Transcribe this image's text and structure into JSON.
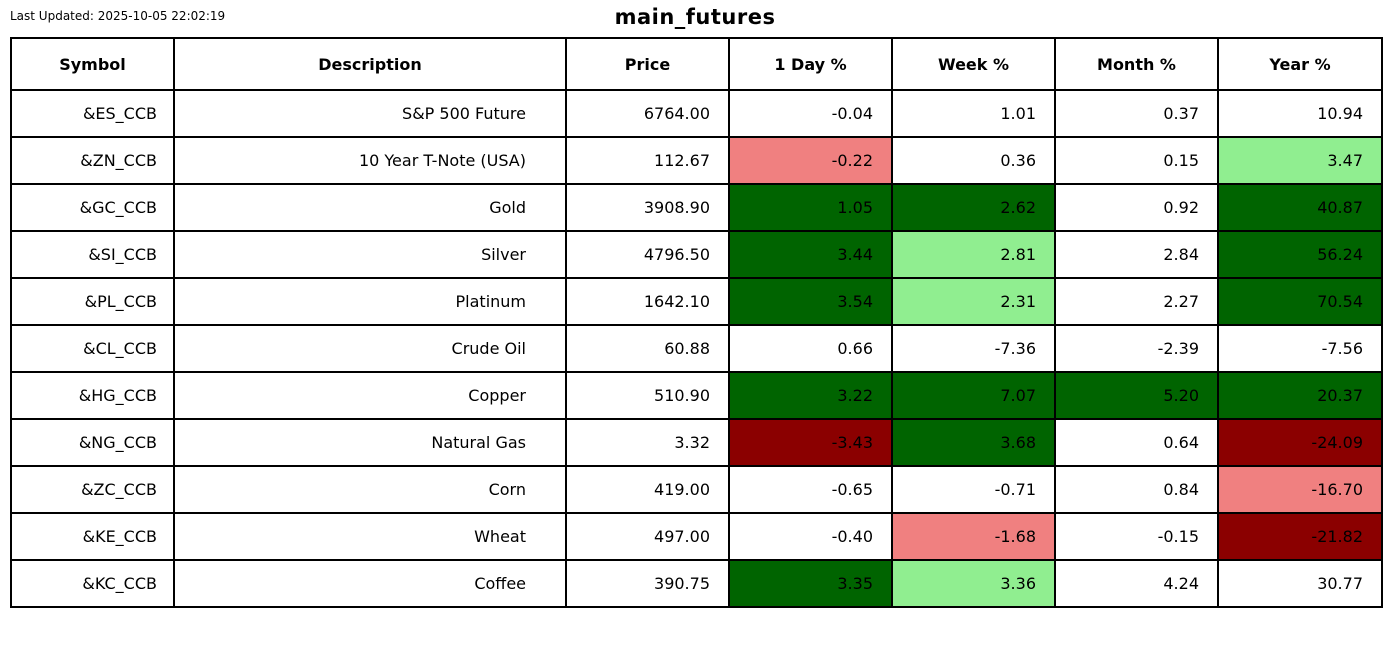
{
  "header": {
    "last_updated": "Last Updated: 2025-10-05 22:02:19",
    "title": "main_futures"
  },
  "colors": {
    "none": "#FFFFFF",
    "dark-green": "#006400",
    "light-green": "#90EE90",
    "light-red": "#F08080",
    "dark-red": "#8B0000"
  },
  "chart_data": {
    "type": "table",
    "title": "main_futures",
    "columns": [
      "Symbol",
      "Description",
      "Price",
      "1 Day %",
      "Week %",
      "Month %",
      "Year %"
    ],
    "rows": [
      {
        "symbol": "&ES_CCB",
        "description": "S&P 500 Future",
        "price": "6764.00",
        "changes": [
          {
            "value": "-0.04",
            "bg": "none"
          },
          {
            "value": "1.01",
            "bg": "none"
          },
          {
            "value": "0.37",
            "bg": "none"
          },
          {
            "value": "10.94",
            "bg": "none"
          }
        ]
      },
      {
        "symbol": "&ZN_CCB",
        "description": "10 Year T-Note (USA)",
        "price": "112.67",
        "changes": [
          {
            "value": "-0.22",
            "bg": "light-red"
          },
          {
            "value": "0.36",
            "bg": "none"
          },
          {
            "value": "0.15",
            "bg": "none"
          },
          {
            "value": "3.47",
            "bg": "light-green"
          }
        ]
      },
      {
        "symbol": "&GC_CCB",
        "description": "Gold",
        "price": "3908.90",
        "changes": [
          {
            "value": "1.05",
            "bg": "dark-green"
          },
          {
            "value": "2.62",
            "bg": "dark-green"
          },
          {
            "value": "0.92",
            "bg": "none"
          },
          {
            "value": "40.87",
            "bg": "dark-green"
          }
        ]
      },
      {
        "symbol": "&SI_CCB",
        "description": "Silver",
        "price": "4796.50",
        "changes": [
          {
            "value": "3.44",
            "bg": "dark-green"
          },
          {
            "value": "2.81",
            "bg": "light-green"
          },
          {
            "value": "2.84",
            "bg": "none"
          },
          {
            "value": "56.24",
            "bg": "dark-green"
          }
        ]
      },
      {
        "symbol": "&PL_CCB",
        "description": "Platinum",
        "price": "1642.10",
        "changes": [
          {
            "value": "3.54",
            "bg": "dark-green"
          },
          {
            "value": "2.31",
            "bg": "light-green"
          },
          {
            "value": "2.27",
            "bg": "none"
          },
          {
            "value": "70.54",
            "bg": "dark-green"
          }
        ]
      },
      {
        "symbol": "&CL_CCB",
        "description": "Crude Oil",
        "price": "60.88",
        "changes": [
          {
            "value": "0.66",
            "bg": "none"
          },
          {
            "value": "-7.36",
            "bg": "none"
          },
          {
            "value": "-2.39",
            "bg": "none"
          },
          {
            "value": "-7.56",
            "bg": "none"
          }
        ]
      },
      {
        "symbol": "&HG_CCB",
        "description": "Copper",
        "price": "510.90",
        "changes": [
          {
            "value": "3.22",
            "bg": "dark-green"
          },
          {
            "value": "7.07",
            "bg": "dark-green"
          },
          {
            "value": "5.20",
            "bg": "dark-green"
          },
          {
            "value": "20.37",
            "bg": "dark-green"
          }
        ]
      },
      {
        "symbol": "&NG_CCB",
        "description": "Natural Gas",
        "price": "3.32",
        "changes": [
          {
            "value": "-3.43",
            "bg": "dark-red"
          },
          {
            "value": "3.68",
            "bg": "dark-green"
          },
          {
            "value": "0.64",
            "bg": "none"
          },
          {
            "value": "-24.09",
            "bg": "dark-red"
          }
        ]
      },
      {
        "symbol": "&ZC_CCB",
        "description": "Corn",
        "price": "419.00",
        "changes": [
          {
            "value": "-0.65",
            "bg": "none"
          },
          {
            "value": "-0.71",
            "bg": "none"
          },
          {
            "value": "0.84",
            "bg": "none"
          },
          {
            "value": "-16.70",
            "bg": "light-red"
          }
        ]
      },
      {
        "symbol": "&KE_CCB",
        "description": "Wheat",
        "price": "497.00",
        "changes": [
          {
            "value": "-0.40",
            "bg": "none"
          },
          {
            "value": "-1.68",
            "bg": "light-red"
          },
          {
            "value": "-0.15",
            "bg": "none"
          },
          {
            "value": "-21.82",
            "bg": "dark-red"
          }
        ]
      },
      {
        "symbol": "&KC_CCB",
        "description": "Coffee",
        "price": "390.75",
        "changes": [
          {
            "value": "3.35",
            "bg": "dark-green"
          },
          {
            "value": "3.36",
            "bg": "light-green"
          },
          {
            "value": "4.24",
            "bg": "none"
          },
          {
            "value": "30.77",
            "bg": "none"
          }
        ]
      }
    ]
  }
}
